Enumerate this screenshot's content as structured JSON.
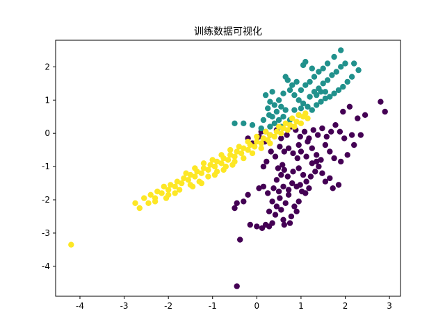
{
  "chart_data": {
    "type": "scatter",
    "title": "训练数据可视化",
    "xlabel": "",
    "ylabel": "",
    "xlim": [
      -4.55,
      3.25
    ],
    "ylim": [
      -4.9,
      2.8
    ],
    "xticks": [
      -4,
      -3,
      -2,
      -1,
      0,
      1,
      2,
      3
    ],
    "yticks": [
      -4,
      -3,
      -2,
      -1,
      0,
      1,
      2
    ],
    "grid": false,
    "legend": "none",
    "series": [
      {
        "color": "#440154",
        "points": [
          [
            -0.45,
            -4.6
          ],
          [
            -0.38,
            -3.2
          ],
          [
            -0.15,
            -2.75
          ],
          [
            0.0,
            -2.8
          ],
          [
            0.12,
            -2.85
          ],
          [
            0.2,
            -2.75
          ],
          [
            0.28,
            -2.8
          ],
          [
            0.35,
            -2.7
          ],
          [
            0.42,
            -2.45
          ],
          [
            0.6,
            -2.6
          ],
          [
            0.62,
            -2.75
          ],
          [
            0.75,
            -2.7
          ],
          [
            0.78,
            -2.5
          ],
          [
            0.9,
            -2.35
          ],
          [
            0.55,
            -2.3
          ],
          [
            0.45,
            -2.2
          ],
          [
            0.28,
            -2.35
          ],
          [
            0.35,
            -2.05
          ],
          [
            0.52,
            -1.95
          ],
          [
            0.65,
            -2.1
          ],
          [
            0.72,
            -1.85
          ],
          [
            0.85,
            -2.2
          ],
          [
            0.95,
            -2.05
          ],
          [
            1.02,
            -1.75
          ],
          [
            1.1,
            -1.8
          ],
          [
            1.18,
            -1.65
          ],
          [
            0.98,
            -1.55
          ],
          [
            0.9,
            -1.6
          ],
          [
            0.8,
            -1.5
          ],
          [
            0.72,
            -1.7
          ],
          [
            0.6,
            -1.6
          ],
          [
            0.5,
            -1.75
          ],
          [
            0.38,
            -1.65
          ],
          [
            0.25,
            -1.8
          ],
          [
            0.15,
            -1.6
          ],
          [
            0.05,
            -1.65
          ],
          [
            -0.2,
            -1.85
          ],
          [
            -0.3,
            -2.05
          ],
          [
            -0.45,
            -2.1
          ],
          [
            -0.5,
            -2.25
          ],
          [
            0.45,
            -1.4
          ],
          [
            0.55,
            -1.25
          ],
          [
            0.62,
            -1.1
          ],
          [
            0.48,
            -1.05
          ],
          [
            0.58,
            -0.95
          ],
          [
            0.7,
            -1.3
          ],
          [
            0.82,
            -1.15
          ],
          [
            0.95,
            -1.05
          ],
          [
            1.05,
            -1.25
          ],
          [
            1.12,
            -1.45
          ],
          [
            1.22,
            -1.3
          ],
          [
            1.32,
            -1.15
          ],
          [
            1.4,
            -1.0
          ],
          [
            1.48,
            -1.2
          ],
          [
            1.55,
            -1.45
          ],
          [
            1.65,
            -1.35
          ],
          [
            1.72,
            -1.65
          ],
          [
            1.85,
            -1.55
          ],
          [
            1.45,
            -0.8
          ],
          [
            1.35,
            -0.65
          ],
          [
            1.25,
            -0.9
          ],
          [
            1.12,
            -0.7
          ],
          [
            1.0,
            -0.55
          ],
          [
            0.92,
            -0.75
          ],
          [
            0.82,
            -0.6
          ],
          [
            0.72,
            -0.45
          ],
          [
            0.62,
            -0.55
          ],
          [
            0.52,
            -0.4
          ],
          [
            0.42,
            -0.7
          ],
          [
            0.32,
            -0.55
          ],
          [
            0.22,
            -0.85
          ],
          [
            0.15,
            -1.0
          ],
          [
            0.18,
            -0.25
          ],
          [
            0.05,
            -0.1
          ],
          [
            -0.1,
            -0.3
          ],
          [
            -0.2,
            -0.15
          ],
          [
            0.1,
            0.05
          ],
          [
            0.3,
            -0.05
          ],
          [
            0.45,
            0.1
          ],
          [
            0.55,
            -0.15
          ],
          [
            0.68,
            -0.05
          ],
          [
            0.78,
            0.2
          ],
          [
            0.88,
            0.1
          ],
          [
            0.98,
            -0.1
          ],
          [
            1.08,
            0.05
          ],
          [
            1.18,
            -0.15
          ],
          [
            1.28,
            0.1
          ],
          [
            1.38,
            -0.05
          ],
          [
            1.48,
            0.15
          ],
          [
            1.58,
            -0.1
          ],
          [
            1.68,
            0.05
          ],
          [
            1.78,
            0.25
          ],
          [
            1.88,
            0.05
          ],
          [
            1.98,
            -0.15
          ],
          [
            1.55,
            -0.35
          ],
          [
            1.65,
            -0.55
          ],
          [
            1.75,
            -0.75
          ],
          [
            1.9,
            -0.85
          ],
          [
            2.05,
            -0.65
          ],
          [
            2.2,
            -0.35
          ],
          [
            2.15,
            -0.05
          ],
          [
            2.28,
            0.45
          ],
          [
            2.45,
            0.55
          ],
          [
            2.8,
            0.95
          ],
          [
            2.9,
            0.65
          ],
          [
            2.35,
            -0.05
          ],
          [
            2.1,
            0.8
          ],
          [
            1.95,
            0.65
          ],
          [
            1.25,
            -0.45
          ],
          [
            1.15,
            -0.25
          ],
          [
            0.95,
            -0.35
          ],
          [
            1.35,
            -0.85
          ]
        ]
      },
      {
        "color": "#21918c",
        "points": [
          [
            -0.5,
            0.3
          ],
          [
            -0.3,
            0.3
          ],
          [
            -0.1,
            0.25
          ],
          [
            0.1,
            0.15
          ],
          [
            0.2,
            0.05
          ],
          [
            0.3,
            0.2
          ],
          [
            0.4,
            0.3
          ],
          [
            0.5,
            0.4
          ],
          [
            0.6,
            0.5
          ],
          [
            0.35,
            0.5
          ],
          [
            0.45,
            0.65
          ],
          [
            0.55,
            0.8
          ],
          [
            0.65,
            0.7
          ],
          [
            0.25,
            0.75
          ],
          [
            0.3,
            0.95
          ],
          [
            0.5,
            1.0
          ],
          [
            0.6,
            1.2
          ],
          [
            0.75,
            1.3
          ],
          [
            0.85,
            1.15
          ],
          [
            0.95,
            1.0
          ],
          [
            1.05,
            0.9
          ],
          [
            1.15,
            0.8
          ],
          [
            1.25,
            0.7
          ],
          [
            1.35,
            0.85
          ],
          [
            1.45,
            0.95
          ],
          [
            1.55,
            1.05
          ],
          [
            1.65,
            1.1
          ],
          [
            1.75,
            1.2
          ],
          [
            1.85,
            1.3
          ],
          [
            1.95,
            1.4
          ],
          [
            2.05,
            1.55
          ],
          [
            2.15,
            1.7
          ],
          [
            1.2,
            1.1
          ],
          [
            1.3,
            1.25
          ],
          [
            1.4,
            1.35
          ],
          [
            1.5,
            1.5
          ],
          [
            1.6,
            1.6
          ],
          [
            1.7,
            1.75
          ],
          [
            1.8,
            1.85
          ],
          [
            1.9,
            2.0
          ],
          [
            2.0,
            2.1
          ],
          [
            1.1,
            1.45
          ],
          [
            1.0,
            1.3
          ],
          [
            0.9,
            1.55
          ],
          [
            0.8,
            1.45
          ],
          [
            0.7,
            1.6
          ],
          [
            0.2,
            1.15
          ],
          [
            0.35,
            1.25
          ],
          [
            1.3,
            1.7
          ],
          [
            1.4,
            1.85
          ],
          [
            1.5,
            1.95
          ],
          [
            1.6,
            2.1
          ],
          [
            1.75,
            2.3
          ],
          [
            1.9,
            2.5
          ],
          [
            2.2,
            2.1
          ],
          [
            2.3,
            1.9
          ],
          [
            1.05,
            2.05
          ],
          [
            1.1,
            2.15
          ],
          [
            0.15,
            0.4
          ],
          [
            0.95,
            0.55
          ],
          [
            1.2,
            1.55
          ],
          [
            1.35,
            1.15
          ],
          [
            1.25,
            1.95
          ],
          [
            0.75,
            0.4
          ],
          [
            0.55,
            0.2
          ],
          [
            1.45,
            1.25
          ],
          [
            1.55,
            1.25
          ],
          [
            0.65,
            1.7
          ],
          [
            0.4,
            0.85
          ],
          [
            0.28,
            0.55
          ],
          [
            0.85,
            0.7
          ],
          [
            1.0,
            0.75
          ]
        ]
      },
      {
        "color": "#fde725",
        "points": [
          [
            -4.2,
            -3.35
          ],
          [
            -2.75,
            -2.1
          ],
          [
            -2.65,
            -2.25
          ],
          [
            -2.55,
            -1.95
          ],
          [
            -2.45,
            -2.1
          ],
          [
            -2.4,
            -1.85
          ],
          [
            -2.3,
            -1.95
          ],
          [
            -2.25,
            -1.75
          ],
          [
            -2.15,
            -1.8
          ],
          [
            -2.1,
            -1.6
          ],
          [
            -2.0,
            -1.7
          ],
          [
            -1.95,
            -1.55
          ],
          [
            -1.85,
            -1.6
          ],
          [
            -1.8,
            -1.45
          ],
          [
            -1.7,
            -1.5
          ],
          [
            -1.65,
            -1.35
          ],
          [
            -1.55,
            -1.4
          ],
          [
            -1.5,
            -1.25
          ],
          [
            -1.4,
            -1.3
          ],
          [
            -1.35,
            -1.15
          ],
          [
            -1.25,
            -1.2
          ],
          [
            -1.2,
            -1.05
          ],
          [
            -1.1,
            -1.1
          ],
          [
            -1.05,
            -0.95
          ],
          [
            -0.95,
            -1.0
          ],
          [
            -0.9,
            -0.85
          ],
          [
            -0.8,
            -0.9
          ],
          [
            -0.75,
            -0.75
          ],
          [
            -0.65,
            -0.8
          ],
          [
            -0.6,
            -0.65
          ],
          [
            -0.5,
            -0.7
          ],
          [
            -0.45,
            -0.55
          ],
          [
            -0.35,
            -0.6
          ],
          [
            -0.3,
            -0.45
          ],
          [
            -0.2,
            -0.5
          ],
          [
            -0.15,
            -0.35
          ],
          [
            -0.05,
            -0.4
          ],
          [
            0.0,
            -0.25
          ],
          [
            0.1,
            -0.3
          ],
          [
            0.15,
            -0.15
          ],
          [
            0.25,
            -0.2
          ],
          [
            0.3,
            -0.05
          ],
          [
            0.4,
            -0.1
          ],
          [
            0.45,
            0.05
          ],
          [
            0.55,
            0.0
          ],
          [
            0.6,
            0.15
          ],
          [
            0.7,
            0.1
          ],
          [
            0.75,
            0.25
          ],
          [
            0.85,
            0.2
          ],
          [
            0.9,
            0.35
          ],
          [
            1.0,
            0.3
          ],
          [
            1.05,
            0.5
          ],
          [
            -2.0,
            -1.85
          ],
          [
            -1.75,
            -1.7
          ],
          [
            -1.5,
            -1.55
          ],
          [
            -1.3,
            -1.45
          ],
          [
            -1.1,
            -1.3
          ],
          [
            -0.9,
            -1.15
          ],
          [
            -0.7,
            -1.0
          ],
          [
            -0.5,
            -0.85
          ],
          [
            -0.3,
            -0.75
          ],
          [
            -0.1,
            -0.6
          ],
          [
            0.1,
            -0.45
          ],
          [
            0.3,
            -0.3
          ],
          [
            -1.6,
            -1.2
          ],
          [
            -1.4,
            -1.05
          ],
          [
            -1.2,
            -0.9
          ],
          [
            -1.0,
            -0.8
          ],
          [
            -0.8,
            -0.65
          ],
          [
            -0.6,
            -0.5
          ],
          [
            -0.4,
            -0.4
          ],
          [
            -0.2,
            -0.25
          ],
          [
            -2.3,
            -2.05
          ],
          [
            -2.05,
            -1.95
          ],
          [
            -1.85,
            -1.8
          ],
          [
            -1.45,
            -1.6
          ],
          [
            -1.25,
            -1.5
          ],
          [
            -0.95,
            -1.25
          ],
          [
            -0.75,
            -1.1
          ],
          [
            -0.55,
            -0.95
          ],
          [
            0.0,
            -0.1
          ],
          [
            0.2,
            0.05
          ],
          [
            0.5,
            0.2
          ],
          [
            0.65,
            0.3
          ],
          [
            0.8,
            0.45
          ],
          [
            0.95,
            0.55
          ],
          [
            1.1,
            0.6
          ],
          [
            1.15,
            0.45
          ]
        ]
      }
    ]
  }
}
